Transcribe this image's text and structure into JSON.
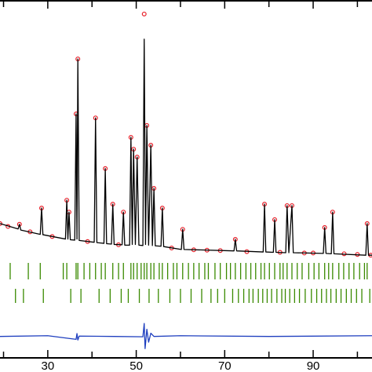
{
  "chart_data": {
    "type": "line",
    "xlim": [
      19.2,
      103.3
    ],
    "ylim": [
      0,
      100
    ],
    "xticks": [
      30,
      50,
      70,
      90
    ],
    "xminor_ticks": [
      20,
      40,
      60,
      80,
      100
    ],
    "series": [
      {
        "color": "#e8202a",
        "marker": "circle",
        "x": [
          19.2,
          21,
          23.6,
          26,
          28.6,
          31,
          34.3,
          34.8,
          36.4,
          36.8,
          39,
          40.8,
          43.0,
          44.7,
          46,
          47.1,
          48.8,
          49.4,
          50.2,
          51.8,
          52.4,
          53.3,
          54.0,
          55.9,
          58,
          60.5,
          63,
          66,
          69,
          72.4,
          75,
          79.0,
          81.3,
          82.5,
          84.1,
          85.2,
          88,
          90,
          92.6,
          94.4,
          97,
          100,
          102.2,
          103
        ],
        "values": [
          37.8,
          37.0,
          37.6,
          35.5,
          42.1,
          34.2,
          44.3,
          41.0,
          68.3,
          83.6,
          32.8,
          67.2,
          53.1,
          43.2,
          31.9,
          41.0,
          61.8,
          58.5,
          56.3,
          96.1,
          65.1,
          59.6,
          47.6,
          42.1,
          31.0,
          36.2,
          30.5,
          30.4,
          30.3,
          33.4,
          30.0,
          43.2,
          38.9,
          29.8,
          42.8,
          42.8,
          29.6,
          29.6,
          36.7,
          41.0,
          29.4,
          29.2,
          37.8,
          29.0
        ]
      },
      {
        "color": "#000000",
        "marker": "none",
        "x": [
          19.2,
          23.3,
          23.6,
          23.9,
          28.3,
          28.6,
          28.9,
          34.0,
          34.3,
          34.55,
          34.8,
          35.1,
          36.1,
          36.4,
          36.6,
          36.8,
          37.1,
          40.5,
          40.8,
          41.1,
          42.7,
          43.0,
          43.3,
          44.4,
          44.7,
          45.0,
          46.8,
          47.1,
          47.4,
          48.5,
          48.8,
          49.1,
          49.4,
          49.8,
          50.2,
          50.6,
          51.5,
          51.8,
          52.1,
          52.4,
          52.8,
          53.3,
          53.65,
          54.0,
          54.3,
          55.6,
          55.9,
          56.2,
          60.2,
          60.5,
          60.8,
          72.1,
          72.4,
          72.7,
          78.7,
          79.0,
          79.3,
          81.0,
          81.3,
          81.6,
          83.8,
          84.1,
          84.5,
          85.2,
          85.5,
          92.3,
          92.6,
          92.9,
          94.1,
          94.4,
          94.7,
          101.9,
          102.2,
          102.5,
          103.3
        ],
        "values": [
          37.8,
          36.3,
          37.6,
          36.0,
          34.8,
          42.1,
          34.7,
          33.5,
          44.3,
          33.5,
          41.0,
          33.3,
          33.2,
          68.3,
          33.5,
          83.6,
          33.1,
          32.6,
          67.2,
          32.5,
          32.3,
          53.1,
          32.2,
          32.1,
          43.2,
          32.0,
          31.9,
          41.0,
          31.8,
          31.8,
          61.8,
          32.0,
          58.5,
          32.0,
          56.3,
          31.8,
          31.7,
          89.1,
          32.0,
          65.1,
          31.8,
          59.6,
          31.7,
          47.6,
          31.6,
          31.5,
          42.1,
          31.4,
          30.6,
          36.2,
          30.6,
          30.2,
          33.4,
          30.2,
          29.9,
          43.2,
          29.9,
          29.8,
          38.9,
          29.8,
          29.7,
          42.8,
          29.7,
          42.8,
          29.7,
          29.5,
          36.7,
          29.5,
          29.4,
          41.0,
          29.4,
          29.0,
          37.8,
          29.0,
          29.0
        ]
      },
      {
        "color": "#1f3fbf",
        "marker": "none",
        "x": [
          19.2,
          30,
          36.4,
          36.6,
          36.8,
          37.1,
          45,
          51.5,
          51.8,
          52.0,
          52.4,
          52.8,
          53.3,
          54.0,
          60,
          80,
          103.3
        ],
        "values": [
          6.4,
          6.6,
          5.6,
          7.2,
          5.4,
          6.5,
          6.4,
          6.3,
          10.0,
          3.0,
          8.4,
          4.8,
          7.3,
          6.4,
          6.6,
          6.4,
          6.6
        ]
      }
    ],
    "bragg_positions": [
      {
        "color": "#3a8a00",
        "x": [
          21.5,
          25.6,
          28.3,
          33.5,
          34.3,
          36.4,
          36.8,
          38.2,
          39.5,
          40.8,
          42.1,
          43.0,
          44.7,
          46.0,
          47.1,
          48.8,
          49.4,
          50.2,
          51.1,
          51.8,
          52.4,
          53.3,
          54.0,
          55.2,
          55.9,
          57.1,
          58.4,
          59.2,
          60.5,
          61.8,
          63.0,
          64.2,
          65.5,
          66.3,
          67.8,
          69.0,
          70.4,
          71.3,
          72.4,
          73.6,
          74.8,
          75.9,
          77.0,
          78.2,
          79.0,
          80.1,
          81.3,
          82.5,
          83.2,
          84.1,
          85.2,
          86.4,
          87.5,
          89.0,
          90.2,
          91.3,
          92.6,
          93.5,
          94.4,
          95.8,
          96.9,
          98.1,
          99.2,
          100.5,
          101.6,
          102.2
        ]
      },
      {
        "color": "#3a8a00",
        "x": [
          22.7,
          24.5,
          29.0,
          35.2,
          37.5,
          41.6,
          44.1,
          46.6,
          48.2,
          50.7,
          52.9,
          55.0,
          57.6,
          60.0,
          62.4,
          64.8,
          66.9,
          68.4,
          70.0,
          71.8,
          73.1,
          74.3,
          75.5,
          76.4,
          77.6,
          78.6,
          79.6,
          80.6,
          81.8,
          82.9,
          83.7,
          84.7,
          85.8,
          86.9,
          88.2,
          89.6,
          90.8,
          91.9,
          93.0,
          94.0,
          95.2,
          96.3,
          97.5,
          98.6,
          99.8,
          101.0,
          102.8
        ]
      }
    ]
  }
}
